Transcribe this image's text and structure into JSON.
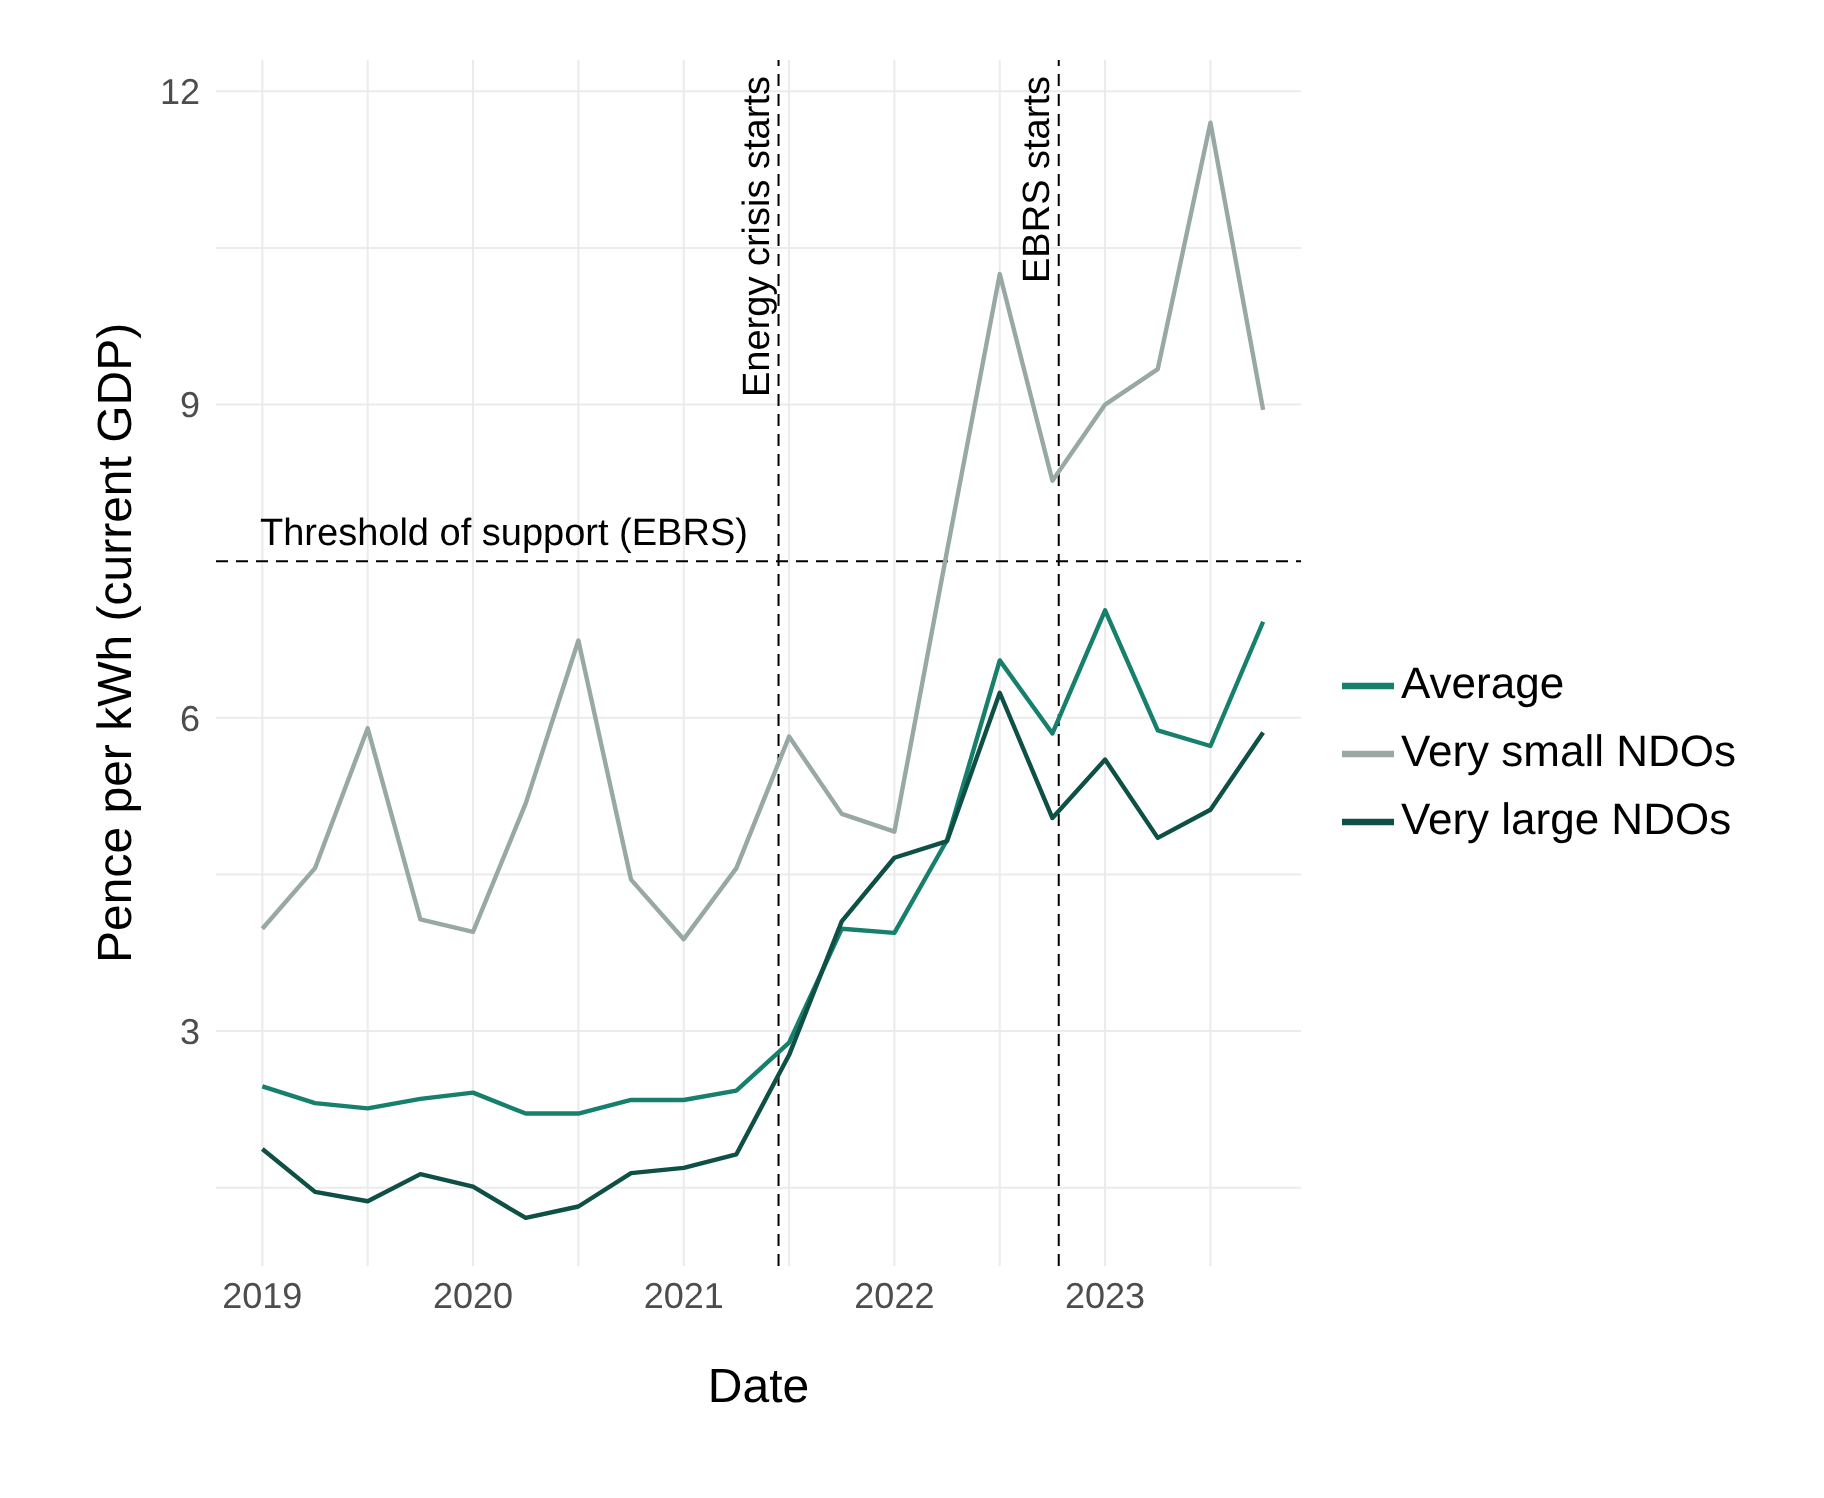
{
  "chart_data": {
    "type": "line",
    "xlabel": "Date",
    "ylabel": "Pence per kWh (current GDP)",
    "x": [
      2019,
      2019.25,
      2019.5,
      2019.75,
      2020,
      2020.25,
      2020.5,
      2020.75,
      2021,
      2021.25,
      2021.5,
      2021.75,
      2022,
      2022.25,
      2022.5,
      2022.75,
      2023,
      2023.25,
      2023.5,
      2023.75
    ],
    "series": [
      {
        "name": "Average",
        "color": "#17806d",
        "values": [
          2.47,
          2.31,
          2.26,
          2.35,
          2.41,
          2.21,
          2.21,
          2.34,
          2.34,
          2.43,
          2.89,
          3.98,
          3.94,
          4.83,
          6.55,
          5.85,
          7.03,
          5.88,
          5.73,
          6.92
        ]
      },
      {
        "name": "Very small NDOs",
        "color": "#98a8a4",
        "values": [
          3.98,
          4.56,
          5.9,
          4.07,
          3.95,
          5.18,
          6.74,
          4.45,
          3.88,
          4.56,
          5.82,
          5.08,
          4.91,
          7.6,
          10.25,
          8.27,
          9.0,
          9.34,
          11.7,
          8.95
        ]
      },
      {
        "name": "Very large NDOs",
        "color": "#0e5045",
        "values": [
          1.87,
          1.46,
          1.37,
          1.63,
          1.51,
          1.21,
          1.32,
          1.64,
          1.69,
          1.82,
          2.77,
          4.05,
          4.66,
          4.82,
          6.24,
          5.04,
          5.6,
          4.85,
          5.12,
          5.86
        ]
      }
    ],
    "xlim": [
      2018.78,
      2023.93
    ],
    "xticks": [
      2019,
      2020,
      2021,
      2022,
      2023
    ],
    "ylim": [
      0.75,
      12.3
    ],
    "yticks": [
      3,
      6,
      9,
      12
    ],
    "ref_lines": [
      {
        "axis": "x",
        "value": 2021.45,
        "label": "Energy crisis starts",
        "line_style": "dashed"
      },
      {
        "axis": "x",
        "value": 2022.78,
        "label": "EBRS starts",
        "line_style": "dashed"
      },
      {
        "axis": "y",
        "value": 7.5,
        "label": "Threshold of support (EBRS)",
        "line_style": "dashed"
      }
    ],
    "grid": true,
    "legend": "right",
    "marker": "none",
    "line_style": "solid"
  }
}
